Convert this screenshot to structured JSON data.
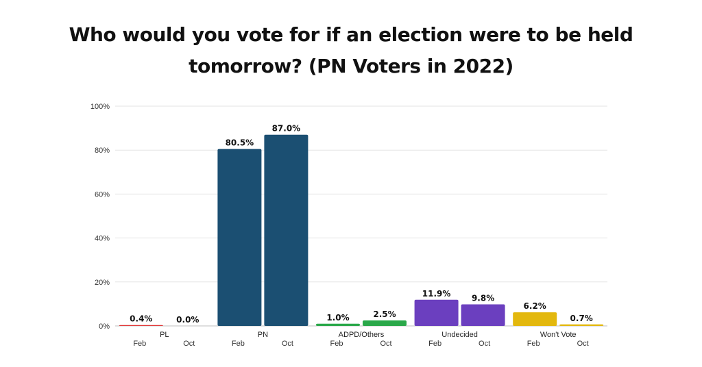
{
  "chart_data": {
    "type": "bar",
    "title": "Who would you vote for if an election were to be held tomorrow? (PN Voters in 2022)",
    "xlabel": "",
    "ylabel": "",
    "ylim": [
      0,
      100
    ],
    "yticks": [
      "0%",
      "20%",
      "40%",
      "60%",
      "80%",
      "100%"
    ],
    "grid": true,
    "categories": [
      "PL",
      "PN",
      "ADPD/Others",
      "Undecided",
      "Won't Vote"
    ],
    "series": [
      {
        "name": "Feb",
        "values": [
          0.4,
          80.5,
          1.0,
          11.9,
          6.2
        ],
        "labels": [
          "0.4%",
          "80.5%",
          "1.0%",
          "11.9%",
          "6.2%"
        ]
      },
      {
        "name": "Oct",
        "values": [
          0.0,
          87.0,
          2.5,
          9.8,
          0.7
        ],
        "labels": [
          "0.0%",
          "87.0%",
          "2.5%",
          "9.8%",
          "0.7%"
        ]
      }
    ],
    "colors": [
      "#e03a3a",
      "#1b4f72",
      "#2aa84a",
      "#6b3fbf",
      "#e3b80e"
    ]
  }
}
